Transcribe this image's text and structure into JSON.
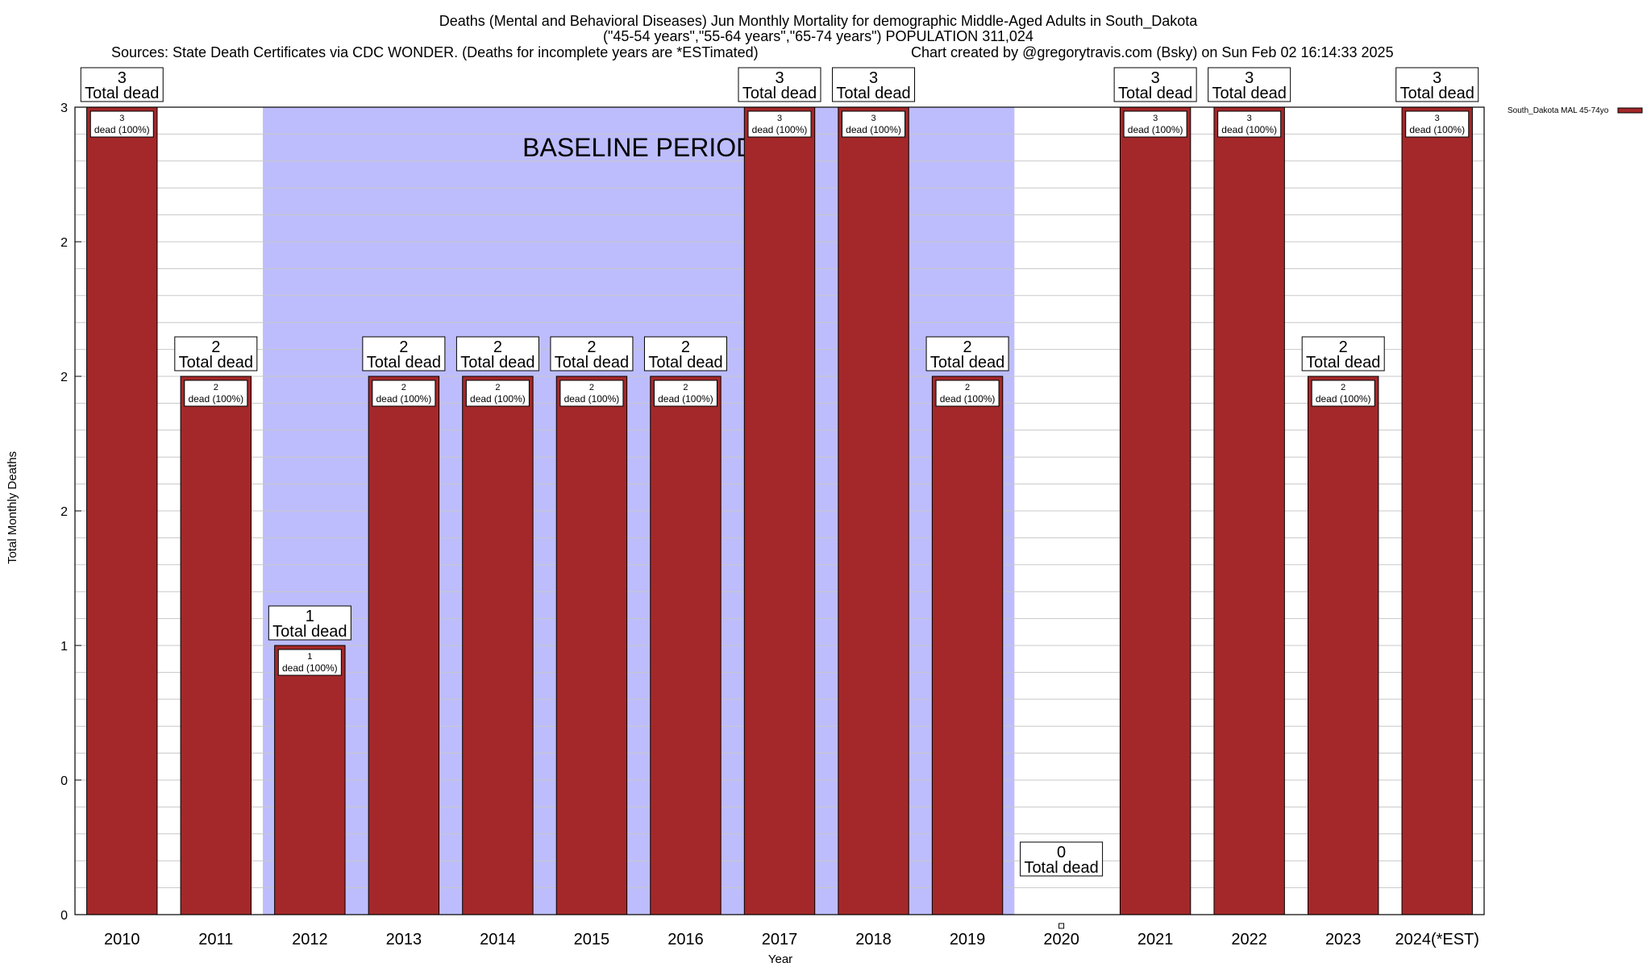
{
  "chart_data": {
    "type": "bar",
    "title_lines": [
      "Deaths (Mental and Behavioral Diseases) Jun Monthly Mortality for demographic Middle-Aged Adults in South_Dakota",
      "(\"45-54 years\",\"55-64 years\",\"65-74 years\") POPULATION 311,024"
    ],
    "sources": "Sources: State Death Certificates via CDC WONDER. (Deaths for incomplete years are *ESTimated)",
    "credit": "Chart created by @gregorytravis.com (Bsky) on Sun Feb 02 16:14:33 2025",
    "xlabel": "Year",
    "ylabel": "Total Monthly Deaths",
    "categories": [
      "2010",
      "2011",
      "2012",
      "2013",
      "2014",
      "2015",
      "2016",
      "2017",
      "2018",
      "2019",
      "2020",
      "2021",
      "2022",
      "2023",
      "2024(*EST)"
    ],
    "values": [
      3,
      2,
      1,
      2,
      2,
      2,
      2,
      3,
      3,
      2,
      0,
      3,
      3,
      2,
      3
    ],
    "ylim": [
      0,
      3
    ],
    "yticks": [
      0,
      0.5,
      1,
      1.5,
      2,
      2.5,
      3
    ],
    "ytick_labels": [
      "0",
      "0",
      "1",
      "2",
      "2",
      "2",
      "3"
    ],
    "grid": true,
    "top_label_suffix": "Total dead",
    "inner_label_suffix": "dead (100%)",
    "baseline_label": "BASELINE PERIOD",
    "baseline_range": [
      "2012",
      "2019"
    ],
    "legend": {
      "placement": "top-right",
      "entries": [
        {
          "name": "South_Dakota MAL 45-74yo",
          "color": "#a4282a"
        }
      ]
    },
    "colors": {
      "bar": "#a4282a",
      "baseline": "#bdbdfd",
      "grid": "#c8c8c8"
    }
  }
}
